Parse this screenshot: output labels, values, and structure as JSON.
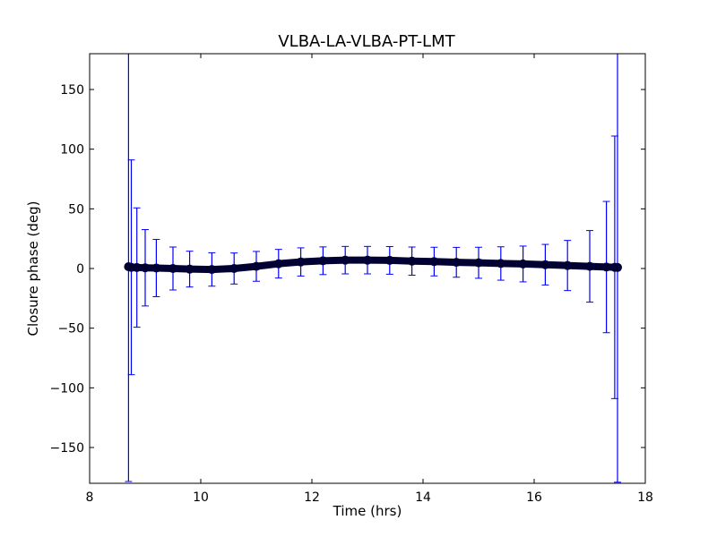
{
  "chart_data": {
    "type": "scatter",
    "title": "VLBA-LA-VLBA-PT-LMT",
    "xlabel": "Time (hrs)",
    "ylabel": "Closure phase (deg)",
    "xlim": [
      8,
      18
    ],
    "ylim": [
      -180,
      180
    ],
    "xticks": [
      8,
      10,
      12,
      14,
      16,
      18
    ],
    "xtick_labels": [
      "8",
      "10",
      "12",
      "14",
      "16",
      "18"
    ],
    "yticks": [
      -150,
      -100,
      -50,
      0,
      50,
      100,
      150
    ],
    "ytick_labels": [
      "−150",
      "−100",
      "−50",
      "0",
      "50",
      "100",
      "150"
    ],
    "grid": false,
    "legend": "none",
    "colors": {
      "marker": "#000033",
      "errorbar": "#0000ff",
      "axes": "#000000"
    },
    "series": [
      {
        "x": [
          8.7,
          8.75,
          8.85,
          9.0,
          9.2,
          9.5,
          9.8,
          10.2,
          10.6,
          11.0,
          11.4,
          11.8,
          12.2,
          12.6,
          13.0,
          13.4,
          13.8,
          14.2,
          14.6,
          15.0,
          15.4,
          15.8,
          16.2,
          16.6,
          17.0,
          17.3,
          17.45,
          17.5
        ],
        "y": [
          1.5,
          1.0,
          0.8,
          0.6,
          0.4,
          0.0,
          -0.5,
          -0.8,
          0.0,
          1.8,
          4.0,
          5.5,
          6.5,
          7.0,
          7.0,
          6.8,
          6.2,
          5.8,
          5.2,
          4.8,
          4.2,
          3.8,
          3.2,
          2.5,
          1.8,
          1.2,
          1.0,
          0.9
        ],
        "yerr": [
          180,
          90,
          50,
          32,
          24,
          18,
          15,
          14,
          13,
          12.5,
          12,
          11.8,
          11.6,
          11.5,
          11.5,
          11.6,
          11.8,
          12,
          12.5,
          13,
          14,
          15,
          17,
          21,
          30,
          55,
          110,
          180
        ]
      }
    ]
  }
}
